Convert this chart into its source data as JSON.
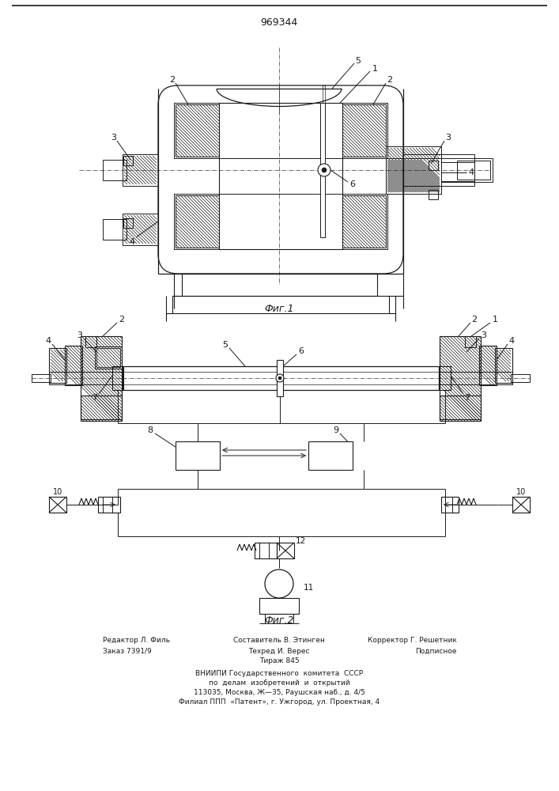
{
  "patent_number": "969344",
  "fig1_label": "Фиг.1",
  "fig2_label": "Фиг.2",
  "footer_line1_left": "Редактор Л. Филь",
  "footer_line1_center": "Составитель В. Этинген",
  "footer_line1_right": "Корректор Г. Решетник",
  "footer_line2_left": "Заказ 7391/9",
  "footer_line2_center": "Техред И. Верес",
  "footer_line2_right": "Подписное",
  "footer_line3_center": "Тираж 845",
  "footer_vnipi1": "ВНИИПИ Государственного  комитета  СССР",
  "footer_vnipi2": "по  делам  изобретений  и  открытий",
  "footer_vnipi3": "113035, Москва, Ж—35, Раушская наб., д. 4/5",
  "footer_vnipi4": "Филиал ППП  «Патент», г. Ужгород, ул. Проектная, 4",
  "bg_color": "#ffffff",
  "line_color": "#1a1a1a",
  "text_color": "#1a1a1a"
}
